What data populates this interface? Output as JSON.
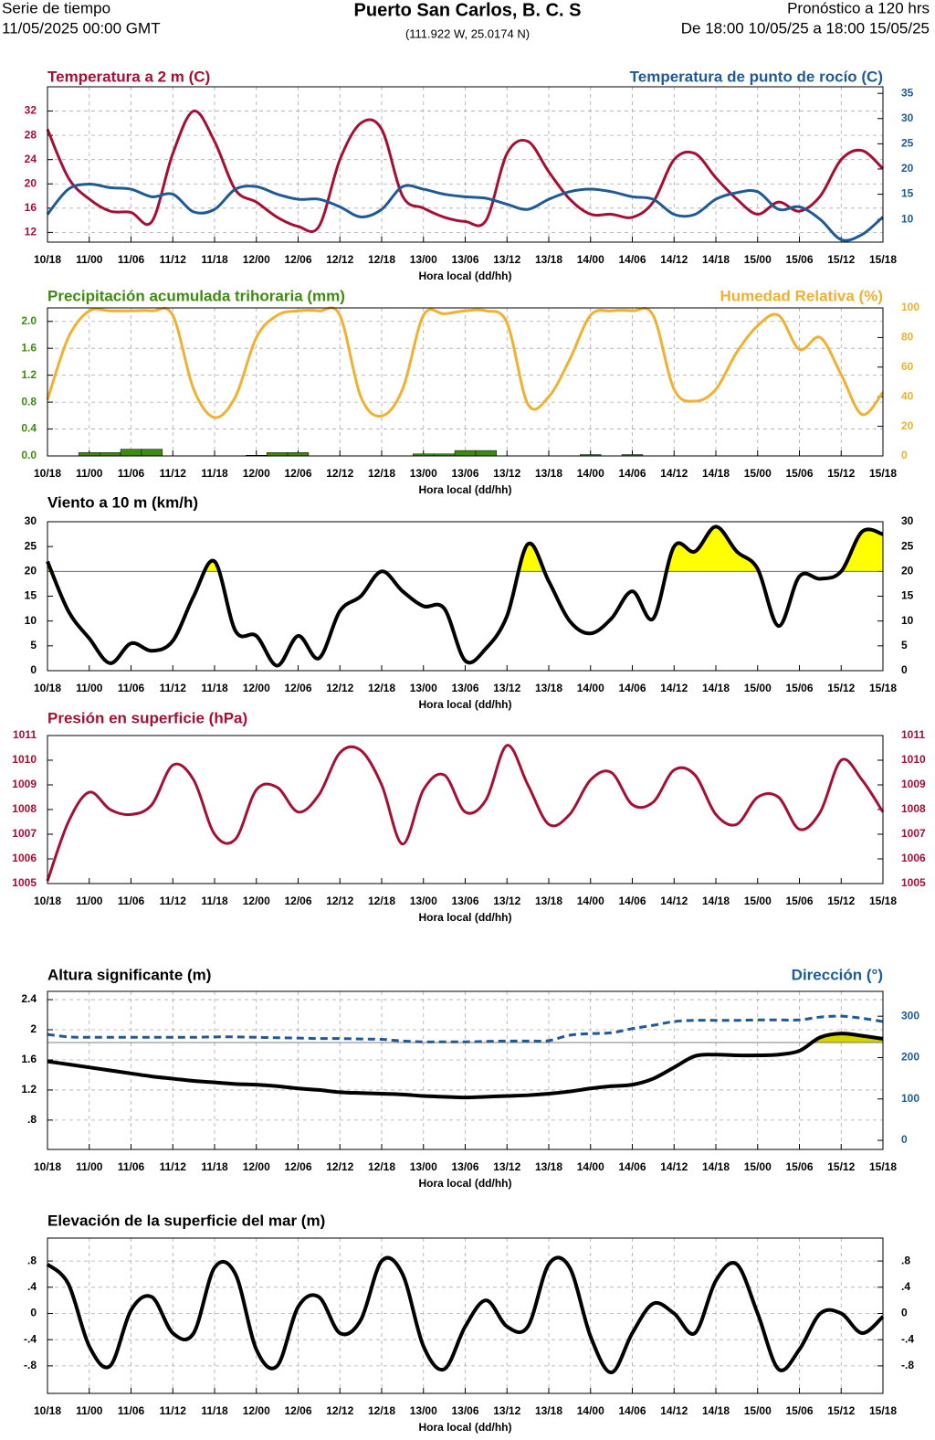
{
  "header": {
    "left_1": "Serie de tiempo",
    "left_2": "11/05/2025 00:00 GMT",
    "title": "Puerto San Carlos, B. C. S",
    "subtitle": "(111.922 W, 25.0174 N)",
    "right_1": "Pronóstico a 120 hrs",
    "right_2": "De 18:00 10/05/25 a 18:00 15/05/25"
  },
  "chart_data": [
    {
      "type": "line",
      "title": "Temperatura a 2 m (C)",
      "title_right": "Temperatura de punto de rocío (C)",
      "xlabel": "Hora local (dd/hh)",
      "categories": [
        "10/18",
        null,
        "11/00",
        null,
        "11/06",
        null,
        "11/12",
        null,
        "11/18",
        null,
        "12/00",
        null,
        "12/06",
        null,
        "12/12",
        null,
        "12/18",
        null,
        "13/00",
        null,
        "13/06",
        null,
        "13/12",
        null,
        "13/18",
        null,
        "14/00",
        null,
        "14/06",
        null,
        "14/12",
        null,
        "14/18",
        null,
        "15/00",
        null,
        "15/06",
        null,
        "15/12",
        null,
        "15/18"
      ],
      "ylim": [
        10.4,
        36
      ],
      "yticks": [
        12,
        16,
        20,
        24,
        28,
        32
      ],
      "y2lim": [
        5.5,
        36.3
      ],
      "y2ticks": [
        10,
        15,
        20,
        25,
        30,
        35
      ],
      "grid": true,
      "series": [
        {
          "color": "#a50f34",
          "values": [
            29,
            21,
            17.5,
            15.5,
            15.3,
            13.8,
            25,
            32,
            27,
            19,
            17,
            14.5,
            13,
            13,
            24,
            30,
            29,
            18,
            16,
            14.5,
            13.8,
            14,
            25,
            27,
            22,
            17.5,
            15,
            15,
            14.5,
            17,
            24,
            25,
            21,
            17.5,
            15,
            17,
            15.5,
            18,
            24,
            25.5,
            22.5
          ]
        },
        {
          "color": "#1f5a96",
          "axis": "y2",
          "values": [
            11,
            16,
            17,
            16.3,
            16,
            14.5,
            15,
            11.5,
            12,
            16,
            16.5,
            15,
            14,
            14,
            12.5,
            10.5,
            12,
            16.5,
            16,
            15,
            14.5,
            14.2,
            13,
            12,
            14,
            15.5,
            16,
            15.5,
            14.5,
            14,
            11,
            11,
            14,
            15.3,
            15.5,
            12,
            12.5,
            10,
            6,
            7,
            10.5
          ]
        }
      ]
    },
    {
      "type": "line",
      "title": "Precipitación acumulada trihoraria (mm)",
      "title_right": "Humedad Relativa (%)",
      "xlabel": "Hora local (dd/hh)",
      "categories": [
        "10/18",
        null,
        "11/00",
        null,
        "11/06",
        null,
        "11/12",
        null,
        "11/18",
        null,
        "12/00",
        null,
        "12/06",
        null,
        "12/12",
        null,
        "12/18",
        null,
        "13/00",
        null,
        "13/06",
        null,
        "13/12",
        null,
        "13/18",
        null,
        "14/00",
        null,
        "14/06",
        null,
        "14/12",
        null,
        "14/18",
        null,
        "15/00",
        null,
        "15/06",
        null,
        "15/12",
        null,
        "15/18"
      ],
      "ylim": [
        0,
        2.2
      ],
      "yticks": [
        {
          "value": 0,
          "label": "0.0"
        },
        0.4,
        0.8,
        1.2,
        1.6,
        {
          "value": 2,
          "label": "2.0"
        }
      ],
      "y2lim": [
        0,
        100
      ],
      "y2ticks": [
        0,
        20,
        40,
        60,
        80,
        100
      ],
      "grid": true,
      "series": [
        {
          "type": "bar",
          "color": "#3d8b0f",
          "values": [
            0,
            0,
            0.05,
            0.05,
            0.1,
            0.1,
            0,
            0,
            0,
            0,
            0.01,
            0.05,
            0.05,
            0,
            0,
            0,
            0,
            0,
            0.03,
            0.03,
            0.08,
            0.08,
            0,
            0,
            0,
            0,
            0.02,
            0,
            0.02,
            0,
            0,
            0,
            0,
            0,
            0,
            0,
            0,
            0,
            0,
            0,
            0
          ]
        },
        {
          "color": "#f0b030",
          "axis": "y2",
          "values": [
            38,
            80,
            98,
            98,
            98,
            98,
            95,
            45,
            26,
            40,
            80,
            95,
            98,
            98,
            95,
            40,
            27,
            45,
            95,
            96,
            98,
            98,
            90,
            35,
            40,
            65,
            95,
            98,
            98,
            95,
            45,
            37,
            45,
            70,
            88,
            95,
            72,
            80,
            55,
            28,
            43
          ]
        }
      ]
    },
    {
      "type": "line",
      "title": "Viento a 10 m (km/h)",
      "xlabel": "Hora local (dd/hh)",
      "mirror_y": true,
      "categories": [
        "10/18",
        null,
        "11/00",
        null,
        "11/06",
        null,
        "11/12",
        null,
        "11/18",
        null,
        "12/00",
        null,
        "12/06",
        null,
        "12/12",
        null,
        "12/18",
        null,
        "13/00",
        null,
        "13/06",
        null,
        "13/12",
        null,
        "13/18",
        null,
        "14/00",
        null,
        "14/06",
        null,
        "14/12",
        null,
        "14/18",
        null,
        "15/00",
        null,
        "15/06",
        null,
        "15/12",
        null,
        "15/18"
      ],
      "ylim": [
        0,
        30
      ],
      "yticks": [
        0,
        5,
        10,
        15,
        20,
        25,
        30
      ],
      "grid": false,
      "reference_line": 20,
      "fill_color": "#ffff00",
      "series": [
        {
          "color": "#000000",
          "values": [
            22,
            12,
            6.5,
            1.5,
            5.5,
            4,
            6,
            15,
            22,
            8,
            7,
            1,
            7,
            2.5,
            12,
            15,
            20,
            16,
            13,
            12.5,
            2,
            4.5,
            11,
            25.5,
            18,
            10,
            7.5,
            10.5,
            16,
            10.5,
            25,
            24,
            29,
            24,
            20.5,
            9,
            19,
            18.5,
            20,
            28,
            27.5
          ]
        }
      ]
    },
    {
      "type": "line",
      "title": "Presión en superficie (hPa)",
      "xlabel": "Hora local (dd/hh)",
      "mirror_y": true,
      "categories": [
        "10/18",
        null,
        "11/00",
        null,
        "11/06",
        null,
        "11/12",
        null,
        "11/18",
        null,
        "12/00",
        null,
        "12/06",
        null,
        "12/12",
        null,
        "12/18",
        null,
        "13/00",
        null,
        "13/06",
        null,
        "13/12",
        null,
        "13/18",
        null,
        "14/00",
        null,
        "14/06",
        null,
        "14/12",
        null,
        "14/18",
        null,
        "15/00",
        null,
        "15/06",
        null,
        "15/12",
        null,
        "15/18"
      ],
      "ylim": [
        1005,
        1011
      ],
      "yticks": [
        1005,
        1006,
        1007,
        1008,
        1009,
        1010,
        1011
      ],
      "grid": false,
      "series": [
        {
          "color": "#a50f34",
          "values": [
            1005.1,
            1007.5,
            1008.7,
            1008,
            1007.8,
            1008.2,
            1009.8,
            1009.2,
            1007,
            1006.8,
            1008.8,
            1008.9,
            1007.9,
            1008.6,
            1010.3,
            1010.4,
            1009,
            1006.6,
            1008.8,
            1009.4,
            1007.9,
            1008.4,
            1010.6,
            1009,
            1007.4,
            1007.8,
            1009.2,
            1009.5,
            1008.2,
            1008.3,
            1009.6,
            1009.4,
            1007.8,
            1007.4,
            1008.5,
            1008.5,
            1007.2,
            1007.9,
            1010,
            1009.2,
            1007.9
          ]
        }
      ]
    },
    {
      "type": "line",
      "title": "Altura significante (m)",
      "title_right": "Dirección (°)",
      "xlabel": "Hora local (dd/hh)",
      "categories": [
        "10/18",
        null,
        "11/00",
        null,
        "11/06",
        null,
        "11/12",
        null,
        "11/18",
        null,
        "12/00",
        null,
        "12/06",
        null,
        "12/12",
        null,
        "12/18",
        null,
        "13/00",
        null,
        "13/06",
        null,
        "13/12",
        null,
        "13/18",
        null,
        "14/00",
        null,
        "14/06",
        null,
        "14/12",
        null,
        "14/18",
        null,
        "15/00",
        null,
        "15/06",
        null,
        "15/12",
        null,
        "15/18"
      ],
      "ylim": [
        0.41,
        2.51
      ],
      "yticks": [
        {
          "value": 0.8,
          "label": ".8"
        },
        1.2,
        1.6,
        2,
        2.4
      ],
      "y2lim": [
        -22,
        360
      ],
      "y2ticks": [
        0,
        100,
        200,
        300
      ],
      "grid": true,
      "reference_line": 1.83,
      "fill_color": "#d4d400",
      "series": [
        {
          "color": "#000000",
          "values": [
            1.58,
            1.54,
            1.5,
            1.46,
            1.42,
            1.38,
            1.35,
            1.32,
            1.3,
            1.28,
            1.27,
            1.25,
            1.22,
            1.2,
            1.17,
            1.16,
            1.15,
            1.14,
            1.12,
            1.11,
            1.1,
            1.11,
            1.12,
            1.13,
            1.15,
            1.18,
            1.22,
            1.25,
            1.27,
            1.35,
            1.5,
            1.65,
            1.67,
            1.66,
            1.66,
            1.67,
            1.72,
            1.9,
            1.95,
            1.92,
            1.88
          ]
        },
        {
          "color": "#1f5a96",
          "axis": "y2",
          "dash": true,
          "values": [
            256,
            250,
            249,
            249,
            249,
            249,
            249,
            249,
            250,
            250,
            249,
            248,
            247,
            246,
            246,
            245,
            244,
            240,
            238,
            238,
            238,
            239,
            240,
            240,
            241,
            254,
            258,
            260,
            270,
            278,
            287,
            290,
            290,
            290,
            291,
            291,
            291,
            298,
            300,
            295,
            287
          ]
        }
      ]
    },
    {
      "type": "line",
      "title": "Elevación de la superficie del mar (m)",
      "xlabel": "Hora local (dd/hh)",
      "mirror_y": true,
      "categories": [
        "10/18",
        null,
        "11/00",
        null,
        "11/06",
        null,
        "11/12",
        null,
        "11/18",
        null,
        "12/00",
        null,
        "12/06",
        null,
        "12/12",
        null,
        "12/18",
        null,
        "13/00",
        null,
        "13/06",
        null,
        "13/12",
        null,
        "13/18",
        null,
        "14/00",
        null,
        "14/06",
        null,
        "14/12",
        null,
        "14/18",
        null,
        "15/00",
        null,
        "15/06",
        null,
        "15/12",
        null,
        "15/18"
      ],
      "ylim": [
        -1.22,
        1.15
      ],
      "yticks": [
        {
          "value": -0.8,
          "label": "-.8"
        },
        {
          "value": -0.4,
          "label": "-.4"
        },
        0,
        {
          "value": 0.4,
          "label": ".4"
        },
        {
          "value": 0.8,
          "label": ".8"
        }
      ],
      "grid": true,
      "series": [
        {
          "color": "#000000",
          "values": [
            0.75,
            0.45,
            -0.5,
            -0.8,
            0.05,
            0.25,
            -0.3,
            -0.3,
            0.7,
            0.6,
            -0.55,
            -0.8,
            0.1,
            0.25,
            -0.3,
            -0.1,
            0.8,
            0.6,
            -0.5,
            -0.85,
            -0.2,
            0.2,
            -0.2,
            -0.2,
            0.75,
            0.7,
            -0.35,
            -0.9,
            -0.3,
            0.15,
            0,
            -0.3,
            0.5,
            0.75,
            0,
            -0.85,
            -0.55,
            0,
            0,
            -0.3,
            -0.05
          ]
        }
      ]
    }
  ]
}
